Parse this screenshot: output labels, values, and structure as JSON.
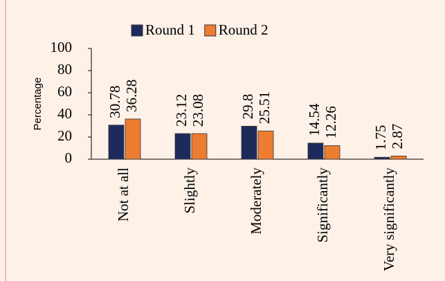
{
  "chart_data": {
    "type": "bar",
    "categories": [
      "Not at all",
      "Slightly",
      "Moderately",
      "Significantly",
      "Very significantly"
    ],
    "series": [
      {
        "name": "Round 1",
        "color": "#1f2a5c",
        "values": [
          30.78,
          23.12,
          29.8,
          14.54,
          1.75
        ]
      },
      {
        "name": "Round 2",
        "color": "#ed7d31",
        "values": [
          36.28,
          23.08,
          25.51,
          12.26,
          2.87
        ]
      }
    ],
    "ylabel": "Percentage",
    "ylim": [
      0,
      100
    ],
    "yticks": [
      0,
      20,
      40,
      60,
      80,
      100
    ]
  }
}
